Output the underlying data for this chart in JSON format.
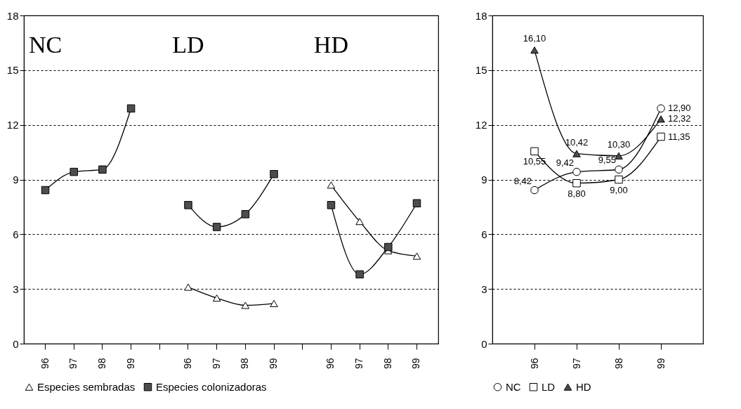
{
  "chart_data": [
    {
      "type": "line",
      "categories": [
        "96",
        "97",
        "98",
        "99",
        null,
        "96",
        "97",
        "98",
        "99",
        null,
        "96",
        "97",
        "98",
        "99"
      ],
      "series": [
        {
          "name": "Especies sembradas",
          "color": "#ffffff",
          "marker": "triangle",
          "values": [
            null,
            null,
            null,
            null,
            null,
            3.1,
            2.5,
            2.1,
            2.2,
            null,
            8.7,
            6.7,
            5.1,
            4.8
          ]
        },
        {
          "name": "Especies colonizadoras",
          "color": "#4d4d4d",
          "marker": "square",
          "values": [
            8.42,
            9.42,
            9.55,
            12.9,
            null,
            7.6,
            6.4,
            7.1,
            9.3,
            null,
            7.6,
            3.8,
            5.3,
            7.7
          ]
        }
      ],
      "annotations": [
        "NC",
        "LD",
        "HD"
      ],
      "ylim": [
        0,
        18
      ],
      "yticks": [
        0,
        3,
        6,
        9,
        12,
        15,
        18
      ],
      "grid": "y",
      "legend": "bottom",
      "line_style": "solid"
    },
    {
      "type": "line",
      "categories": [
        "96",
        "97",
        "98",
        "99"
      ],
      "series": [
        {
          "name": "NC",
          "color": "#ffffff",
          "marker": "circle",
          "values": [
            8.42,
            9.42,
            9.55,
            12.9
          ],
          "value_labels": [
            "8,42",
            "9,42",
            "9,55",
            "12,90"
          ]
        },
        {
          "name": "LD",
          "color": "#ffffff",
          "marker": "square",
          "values": [
            10.55,
            8.8,
            9.0,
            11.35
          ],
          "value_labels": [
            "10,55",
            "8,80",
            "9,00",
            "11,35"
          ]
        },
        {
          "name": "HD",
          "color": "#4d4d4d",
          "marker": "triangle-up",
          "values": [
            16.1,
            10.42,
            10.3,
            12.32
          ],
          "value_labels": [
            "16,10",
            "10,42",
            "10,30",
            "12,32"
          ]
        }
      ],
      "ylim": [
        0,
        18
      ],
      "yticks": [
        0,
        3,
        6,
        9,
        12,
        15,
        18
      ],
      "grid": "y",
      "legend": "bottom",
      "line_style": "solid"
    }
  ]
}
